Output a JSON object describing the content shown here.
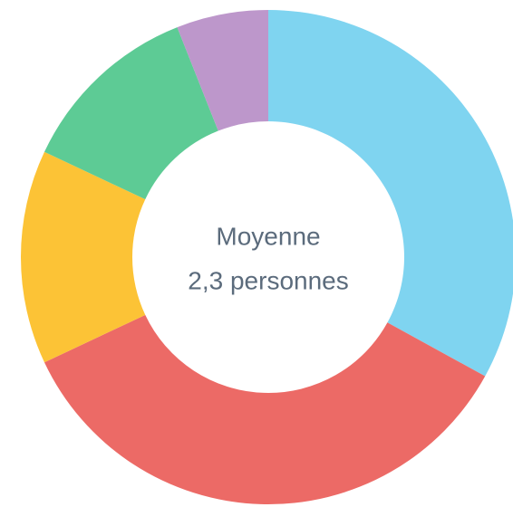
{
  "chart_data": {
    "type": "donut",
    "center_label": [
      "Moyenne",
      "2,3 personnes"
    ],
    "values": [
      33,
      35,
      14,
      12,
      6
    ],
    "colors": [
      "#7fd4f0",
      "#ec6a66",
      "#fcc336",
      "#5dcb95",
      "#bd97cb"
    ]
  }
}
